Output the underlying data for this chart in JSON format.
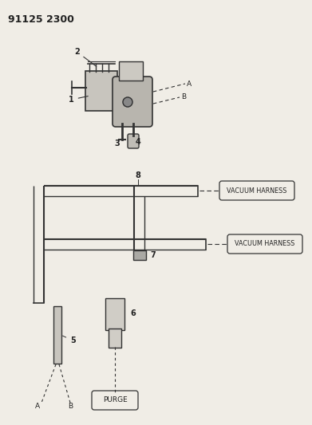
{
  "title": "91125 2300",
  "bg_color": "#f0ede6",
  "line_color": "#333333",
  "text_color": "#222222",
  "vacuum_label1": "VACUUM HARNESS",
  "vacuum_label2": "VACUUM HARNESS",
  "purge_label": "PURGE",
  "fig_w": 3.91,
  "fig_h": 5.33,
  "dpi": 100,
  "xlim": [
    0,
    391
  ],
  "ylim": [
    0,
    533
  ]
}
